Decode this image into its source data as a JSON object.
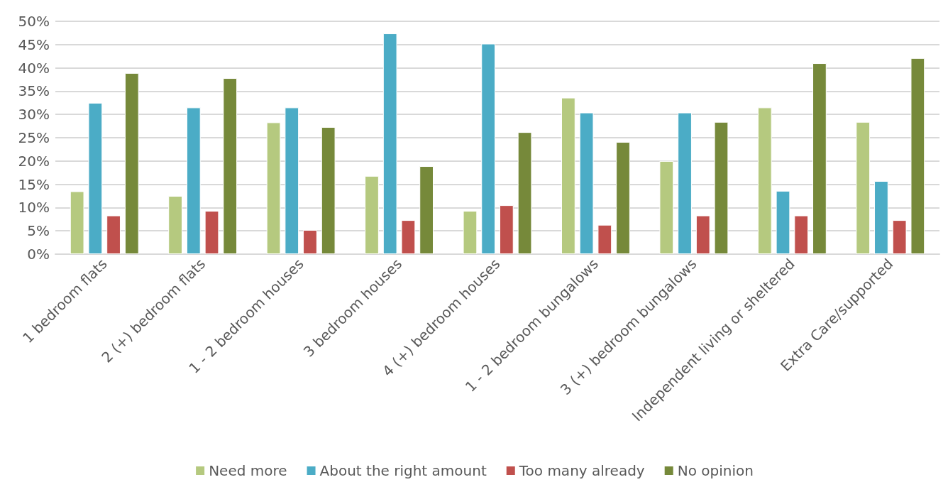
{
  "chart_data": {
    "type": "bar",
    "categories": [
      "1 bedroom flats",
      "2 (+) bedroom flats",
      "1 - 2 bedroom houses",
      "3 bedroom houses",
      "4 (+) bedroom houses",
      "1 - 2 bedroom bungalows",
      "3 (+) bedroom bungalows",
      "Independent living or sheltered",
      "Extra Care/supported"
    ],
    "series": [
      {
        "name": "Need more",
        "color": "#b5c97f",
        "values": [
          13.5,
          12.5,
          28.3,
          16.8,
          9.3,
          33.6,
          20.0,
          31.5,
          28.4
        ]
      },
      {
        "name": "About the right amount",
        "color": "#4bacc6",
        "values": [
          32.5,
          31.5,
          31.5,
          47.4,
          45.2,
          30.4,
          30.4,
          13.6,
          15.7
        ]
      },
      {
        "name": "Too many already",
        "color": "#c0504d",
        "values": [
          8.3,
          9.3,
          5.2,
          7.3,
          10.5,
          6.3,
          8.3,
          8.3,
          7.3
        ]
      },
      {
        "name": "No opinion",
        "color": "#76893a",
        "values": [
          38.9,
          37.8,
          27.3,
          18.9,
          26.2,
          24.1,
          28.4,
          41.0,
          42.1
        ]
      }
    ],
    "ylim": [
      0,
      50
    ],
    "yticks": [
      {
        "value": 0,
        "label": "0%"
      },
      {
        "value": 5,
        "label": "5%"
      },
      {
        "value": 10,
        "label": "10%"
      },
      {
        "value": 15,
        "label": "15%"
      },
      {
        "value": 20,
        "label": "20%"
      },
      {
        "value": 25,
        "label": "25%"
      },
      {
        "value": 30,
        "label": "30%"
      },
      {
        "value": 35,
        "label": "35%"
      },
      {
        "value": 40,
        "label": "40%"
      },
      {
        "value": 45,
        "label": "45%"
      },
      {
        "value": 50,
        "label": "50%"
      }
    ],
    "grid": "y",
    "legend": "bottom"
  }
}
